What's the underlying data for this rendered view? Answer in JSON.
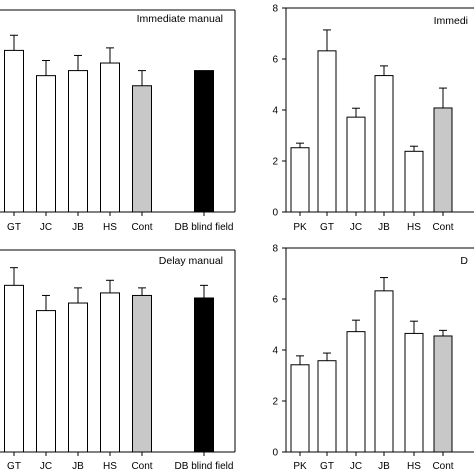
{
  "colors": {
    "open": "#ffffff",
    "control": "#c8c8c8",
    "blindfield": "#000000",
    "stroke": "#000000"
  },
  "chart_data": [
    {
      "panel": "top-left",
      "type": "bar",
      "title": "Immediate manual",
      "categories": [
        "GT",
        "JC",
        "JB",
        "HS",
        "Cont",
        "DB blind field"
      ],
      "values": [
        6.4,
        5.4,
        5.6,
        5.9,
        5.0,
        5.6
      ],
      "errors": [
        0.6,
        0.6,
        0.6,
        0.6,
        0.6,
        0.0
      ],
      "fills": [
        "open",
        "open",
        "open",
        "open",
        "control",
        "blindfield"
      ],
      "ylim": [
        0,
        8
      ],
      "yticks": []
    },
    {
      "panel": "top-right",
      "type": "bar",
      "title": "Immedi",
      "categories": [
        "PK",
        "GT",
        "JC",
        "JB",
        "HS",
        "Cont"
      ],
      "values": [
        2.52,
        6.32,
        3.72,
        5.35,
        2.38,
        4.08
      ],
      "errors": [
        0.18,
        0.82,
        0.35,
        0.38,
        0.2,
        0.78
      ],
      "fills": [
        "open",
        "open",
        "open",
        "open",
        "open",
        "control"
      ],
      "ylim": [
        0,
        8
      ],
      "yticks": [
        "0",
        "2",
        "4",
        "6",
        "8"
      ]
    },
    {
      "panel": "bottom-left",
      "type": "bar",
      "title": "Delay manual",
      "categories": [
        "GT",
        "JC",
        "JB",
        "HS",
        "Cont",
        "DB blind field"
      ],
      "values": [
        6.6,
        5.6,
        5.9,
        6.3,
        6.2,
        6.1
      ],
      "errors": [
        0.7,
        0.6,
        0.6,
        0.5,
        0.3,
        0.5
      ],
      "fills": [
        "open",
        "open",
        "open",
        "open",
        "control",
        "blindfield"
      ],
      "ylim": [
        0,
        8
      ],
      "yticks": []
    },
    {
      "panel": "bottom-right",
      "type": "bar",
      "title": "D",
      "categories": [
        "PK",
        "GT",
        "JC",
        "JB",
        "HS",
        "Cont"
      ],
      "values": [
        3.42,
        3.58,
        4.72,
        6.32,
        4.65,
        4.55
      ],
      "errors": [
        0.35,
        0.3,
        0.45,
        0.52,
        0.48,
        0.22
      ],
      "fills": [
        "open",
        "open",
        "open",
        "open",
        "open",
        "control"
      ],
      "ylim": [
        0,
        8
      ],
      "yticks": [
        "0",
        "2",
        "4",
        "6",
        "8"
      ]
    }
  ]
}
